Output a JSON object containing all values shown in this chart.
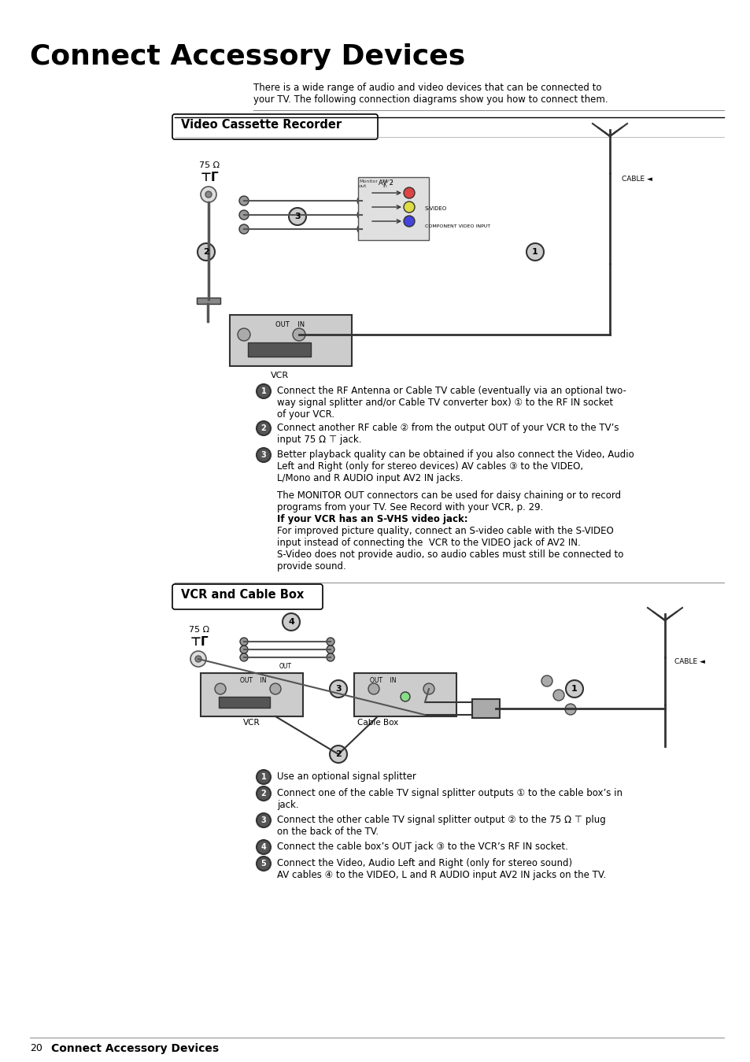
{
  "page_title": "Connect Accessory Devices",
  "bg_color": "#ffffff",
  "title_fontsize": 28,
  "body_fontsize": 9,
  "intro_text": "There is a wide range of audio and video devices that can be connected to\nyour TV. The following connection diagrams show you how to connect them.",
  "section1_title": "Video Cassette Recorder",
  "section2_title": "VCR and Cable Box",
  "footer_page": "20",
  "footer_text": "Connect Accessory Devices",
  "vcr_steps": [
    "Connect the RF Antenna or Cable TV cable (eventually via an optional two-\nway signal splitter and/or Cable TV converter box) ① to the RF IN socket\nof your VCR.",
    "Connect another RF cable ② from the output OUT of your VCR to the TV’s\ninput 75 Ω ⊤ jack.",
    "Better playback quality can be obtained if you also connect the Video, Audio\nLeft and Right (only for stereo devices) AV cables ③ to the VIDEO,\nL/Mono and R AUDIO input AV2 IN jacks."
  ],
  "vcr_extra1": "The MONITOR OUT connectors can be used for daisy chaining or to record\nprograms from your TV. See Record with your VCR, p. 29.",
  "vcr_extra2_title": "If your VCR has an S-VHS video jack:",
  "vcr_extra2": "For improved picture quality, connect an S-video cable with the S-VIDEO\ninput instead of connecting the  VCR to the VIDEO jack of AV2 IN.\nS-Video does not provide audio, so audio cables must still be connected to\nprovide sound.",
  "cable_steps": [
    "Use an optional signal splitter",
    "Connect one of the cable TV signal splitter outputs ① to the cable box’s in\njack.",
    "Connect the other cable TV signal splitter output ② to the 75 Ω ⊤ plug\non the back of the TV.",
    "Connect the cable box’s OUT jack ③ to the VCR’s RF IN socket.",
    "Connect the Video, Audio Left and Right (only for stereo sound)\nAV cables ④ to the VIDEO, L and R AUDIO input AV2 IN jacks on the TV."
  ]
}
